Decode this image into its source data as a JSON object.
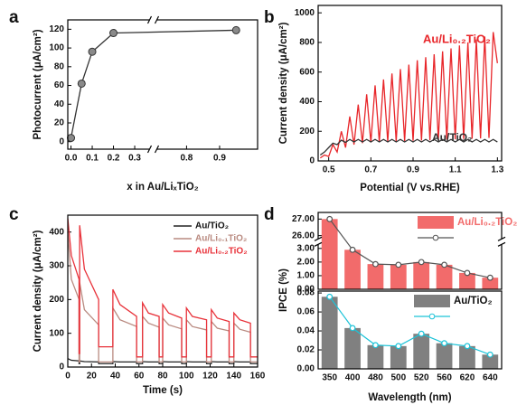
{
  "chart_data": [
    {
      "panel": "a",
      "type": "line",
      "xlabel": "x in Au/LiₓTiO₂",
      "ylabel": "Photocurrent (μA/cm²)",
      "x": [
        0,
        0.05,
        0.1,
        0.2,
        0.95
      ],
      "series": [
        {
          "color": "#333333",
          "marker_color": "#8a8a8a",
          "values": [
            4,
            62,
            96,
            116,
            119
          ]
        }
      ],
      "markers": true,
      "xlim": [
        -0.015,
        1.015
      ],
      "xbreak": [
        0.37,
        0.71
      ],
      "xticks": [
        {
          "value": 0,
          "label": "0.0"
        },
        0.1,
        0.2,
        0.3,
        0.8,
        0.9
      ],
      "ylim": [
        -8,
        130
      ],
      "yticks": [
        0,
        20,
        40,
        60,
        80,
        100,
        120
      ]
    },
    {
      "panel": "b",
      "type": "line",
      "xlabel": "Potential (V vs.RHE)",
      "ylabel": "Current density (μA/cm²)",
      "legend": "inline",
      "x": [
        0.46,
        0.48,
        0.5,
        0.52,
        0.54,
        0.56,
        0.58,
        0.6,
        0.62,
        0.64,
        0.66,
        0.68,
        0.7,
        0.72,
        0.74,
        0.76,
        0.78,
        0.8,
        0.82,
        0.84,
        0.86,
        0.88,
        0.9,
        0.92,
        0.94,
        0.96,
        0.98,
        1.0,
        1.02,
        1.04,
        1.06,
        1.08,
        1.1,
        1.12,
        1.14,
        1.16,
        1.18,
        1.2,
        1.22,
        1.24,
        1.26,
        1.28,
        1.3
      ],
      "series": [
        {
          "name": "Au/Li₀.₂TiO₂",
          "color": "#e8262a",
          "values": [
            20,
            40,
            30,
            110,
            60,
            200,
            90,
            300,
            110,
            380,
            120,
            450,
            125,
            510,
            128,
            550,
            130,
            590,
            132,
            620,
            134,
            650,
            136,
            680,
            138,
            700,
            140,
            720,
            142,
            740,
            144,
            760,
            146,
            780,
            148,
            800,
            150,
            820,
            152,
            840,
            155,
            870,
            660
          ]
        },
        {
          "name": "Au/TiO₂",
          "color": "#333333",
          "values": [
            40,
            60,
            90,
            120,
            110,
            140,
            125,
            145,
            128,
            145,
            128,
            145,
            128,
            145,
            128,
            145,
            128,
            145,
            128,
            145,
            128,
            145,
            128,
            145,
            128,
            145,
            128,
            145,
            128,
            145,
            128,
            145,
            128,
            145,
            128,
            145,
            128,
            145,
            128,
            145,
            128,
            145,
            128
          ]
        }
      ],
      "xlim": [
        0.45,
        1.32
      ],
      "xticks": [
        0.5,
        0.7,
        0.9,
        1.1,
        1.3
      ],
      "ylim": [
        0,
        1050
      ],
      "yticks": [
        0,
        200,
        400,
        600,
        800,
        1000
      ]
    },
    {
      "panel": "c",
      "type": "line",
      "xlabel": "Time (s)",
      "ylabel": "Current density (μA/cm²)",
      "legend": "upper right",
      "x": [
        0,
        3,
        9.5,
        9.5,
        10,
        10,
        14,
        26,
        26,
        38,
        38,
        44,
        58,
        58,
        63,
        63,
        68,
        77,
        77,
        80,
        80,
        85,
        96,
        96,
        100,
        100,
        105,
        117,
        117,
        121,
        121,
        126,
        136,
        136,
        140,
        140,
        145,
        154,
        154,
        160
      ],
      "series": [
        {
          "name": "Au/TiO₂",
          "color": "#222222",
          "values": [
            25,
            20,
            18,
            10,
            10,
            18,
            16,
            15,
            10,
            10,
            16,
            15,
            15,
            10,
            10,
            16,
            15,
            15,
            10,
            10,
            16,
            15,
            15,
            10,
            10,
            16,
            15,
            15,
            10,
            10,
            16,
            15,
            15,
            10,
            10,
            16,
            15,
            15,
            10,
            10
          ]
        },
        {
          "name": "Au/Li₀.₁TiO₂",
          "color": "#b98a80",
          "values": [
            400,
            260,
            200,
            15,
            15,
            250,
            170,
            125,
            15,
            15,
            175,
            140,
            120,
            15,
            15,
            150,
            130,
            118,
            15,
            15,
            145,
            125,
            113,
            15,
            15,
            140,
            120,
            110,
            15,
            15,
            135,
            115,
            107,
            15,
            15,
            130,
            112,
            103,
            15,
            15
          ]
        },
        {
          "name": "Au/Li₀.₂TiO₂",
          "color": "#e8323a",
          "values": [
            440,
            330,
            260,
            40,
            40,
            420,
            290,
            200,
            60,
            60,
            230,
            185,
            150,
            30,
            30,
            190,
            160,
            150,
            30,
            30,
            185,
            160,
            145,
            30,
            30,
            175,
            150,
            140,
            30,
            30,
            170,
            145,
            135,
            30,
            30,
            160,
            140,
            130,
            30,
            30
          ]
        }
      ],
      "xlim": [
        0,
        160
      ],
      "xticks": [
        0,
        20,
        40,
        60,
        80,
        100,
        120,
        140,
        160
      ],
      "ylim": [
        0,
        450
      ],
      "yticks": [
        0,
        100,
        200,
        300,
        400
      ]
    },
    {
      "panel": "d",
      "type": "bar",
      "ylabel": "IPCE (%)",
      "legend": "upper right",
      "series": [
        {
          "name": "Au/Li₀.₂TiO₂",
          "color": "#f26b6b",
          "line_color": "#555555",
          "values": [
            27.0,
            2.9,
            1.85,
            1.8,
            2.0,
            1.8,
            1.2,
            0.85
          ]
        }
      ],
      "ylim": [
        0,
        27.4
      ],
      "ybreak": [
        3.3,
        25.8
      ],
      "yticks": [
        {
          "value": 0,
          "label": "0.00"
        },
        {
          "value": 1,
          "label": "1.00"
        },
        {
          "value": 2,
          "label": "2.00"
        },
        {
          "value": 3,
          "label": "3.00"
        },
        {
          "value": 26,
          "label": "26.00"
        },
        {
          "value": 27,
          "label": "27.00"
        }
      ]
    },
    {
      "type": "bar",
      "xlabel": "Wavelength (nm)",
      "legend": "upper right",
      "categories": [
        "350",
        "400",
        "480",
        "500",
        "520",
        "560",
        "620",
        "640"
      ],
      "series": [
        {
          "name": "Au/TiO₂",
          "color": "#808080",
          "line_color": "#1cc3d8",
          "values": [
            0.076,
            0.043,
            0.025,
            0.024,
            0.037,
            0.027,
            0.024,
            0.015
          ]
        }
      ],
      "ylim": [
        0,
        0.082
      ],
      "yticks": [
        {
          "value": 0,
          "label": "0.00"
        },
        {
          "value": 0.02,
          "label": "0.02"
        },
        {
          "value": 0.04,
          "label": "0.04"
        },
        {
          "value": 0.06,
          "label": "0.06"
        },
        {
          "value": 0.08,
          "label": "0.08"
        }
      ]
    }
  ]
}
